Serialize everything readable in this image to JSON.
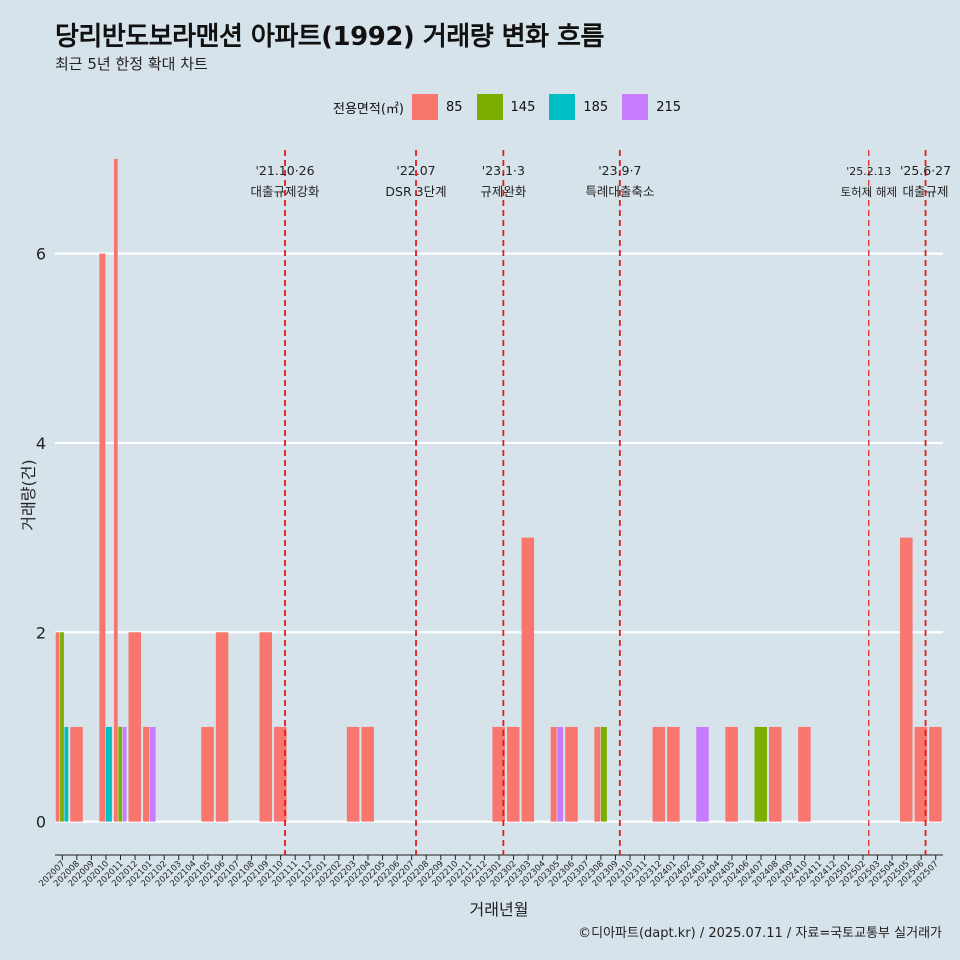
{
  "title": "당리반도보라맨션 아파트(1992) 거래량 변화 흐름",
  "subtitle": "최근 5년 한정 확대 차트",
  "caption": "©디아파트(dapt.kr) / 2025.07.11 / 자료=국토교통부 실거래가",
  "legend": {
    "title": "전용면적(㎡)",
    "items": [
      {
        "label": "85",
        "color": "#f8766d"
      },
      {
        "label": "145",
        "color": "#7cae00"
      },
      {
        "label": "185",
        "color": "#00bfc4"
      },
      {
        "label": "215",
        "color": "#c77cff"
      }
    ]
  },
  "chart_data": {
    "type": "bar",
    "xlabel": "거래년월",
    "ylabel": "거래량(건)",
    "ylim": [
      -0.3,
      7.2
    ],
    "yticks": [
      0,
      2,
      4,
      6
    ],
    "categories": [
      "202007",
      "202008",
      "202009",
      "202010",
      "202011",
      "202012",
      "202101",
      "202102",
      "202103",
      "202104",
      "202105",
      "202106",
      "202107",
      "202108",
      "202109",
      "202110",
      "202111",
      "202112",
      "202201",
      "202202",
      "202203",
      "202204",
      "202205",
      "202206",
      "202207",
      "202208",
      "202209",
      "202210",
      "202211",
      "202212",
      "202301",
      "202302",
      "202303",
      "202304",
      "202305",
      "202306",
      "202307",
      "202308",
      "202309",
      "202310",
      "202311",
      "202312",
      "202401",
      "202402",
      "202403",
      "202404",
      "202405",
      "202406",
      "202407",
      "202408",
      "202409",
      "202410",
      "202411",
      "202412",
      "202501",
      "202502",
      "202503",
      "202504",
      "202505",
      "202506",
      "202507"
    ],
    "series": [
      {
        "name": "85",
        "color": "#f8766d",
        "values": [
          2,
          1,
          0,
          6,
          7,
          2,
          1,
          0,
          0,
          0,
          1,
          2,
          0,
          0,
          2,
          1,
          0,
          0,
          0,
          0,
          1,
          1,
          0,
          0,
          0,
          0,
          0,
          0,
          0,
          0,
          1,
          1,
          3,
          0,
          1,
          1,
          0,
          1,
          0,
          0,
          0,
          1,
          1,
          0,
          0,
          0,
          1,
          0,
          0,
          1,
          0,
          1,
          0,
          0,
          0,
          0,
          0,
          0,
          3,
          1,
          1
        ]
      },
      {
        "name": "145",
        "color": "#7cae00",
        "values": [
          2,
          0,
          0,
          0,
          1,
          0,
          0,
          0,
          0,
          0,
          0,
          0,
          0,
          0,
          0,
          0,
          0,
          0,
          0,
          0,
          0,
          0,
          0,
          0,
          0,
          0,
          0,
          0,
          0,
          0,
          0,
          0,
          0,
          0,
          0,
          0,
          0,
          1,
          0,
          0,
          0,
          0,
          0,
          0,
          0,
          0,
          0,
          0,
          1,
          0,
          0,
          0,
          0,
          0,
          0,
          0,
          0,
          0,
          0,
          0,
          0
        ]
      },
      {
        "name": "185",
        "color": "#00bfc4",
        "values": [
          1,
          0,
          0,
          1,
          0,
          0,
          0,
          0,
          0,
          0,
          0,
          0,
          0,
          0,
          0,
          0,
          0,
          0,
          0,
          0,
          0,
          0,
          0,
          0,
          0,
          0,
          0,
          0,
          0,
          0,
          0,
          0,
          0,
          0,
          0,
          0,
          0,
          0,
          0,
          0,
          0,
          0,
          0,
          0,
          0,
          0,
          0,
          0,
          0,
          0,
          0,
          0,
          0,
          0,
          0,
          0,
          0,
          0,
          0,
          0,
          0
        ]
      },
      {
        "name": "215",
        "color": "#c77cff",
        "values": [
          0,
          0,
          0,
          0,
          1,
          0,
          1,
          0,
          0,
          0,
          0,
          0,
          0,
          0,
          0,
          0,
          0,
          0,
          0,
          0,
          0,
          0,
          0,
          0,
          0,
          0,
          0,
          0,
          0,
          0,
          0,
          0,
          0,
          0,
          1,
          0,
          0,
          0,
          0,
          0,
          0,
          0,
          0,
          0,
          1,
          0,
          0,
          0,
          0,
          0,
          0,
          0,
          0,
          0,
          0,
          0,
          0,
          0,
          0,
          0,
          0
        ]
      }
    ],
    "events": [
      {
        "date": "'21.10·26",
        "label": "대출규제강화",
        "at": 15.3
      },
      {
        "date": "'22.07",
        "label": "DSR 3단계",
        "at": 24.3
      },
      {
        "date": "'23.1·3",
        "label": "규제완화",
        "at": 30.3
      },
      {
        "date": "'23.9·7",
        "label": "특례대출축소",
        "at": 38.3
      },
      {
        "date": "'25.2.13",
        "label": "토허제 해제",
        "at": 55.4
      },
      {
        "date": "'25.6·27",
        "label": "대출규제",
        "at": 59.3
      }
    ]
  }
}
